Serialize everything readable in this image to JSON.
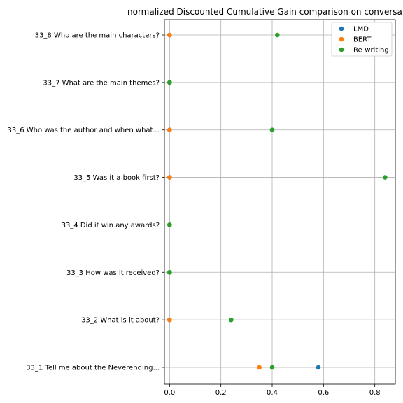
{
  "chart_data": {
    "type": "scatter",
    "title": "normalized Discounted Cumulative Gain comparison on conversa",
    "xlabel": "",
    "ylabel": "",
    "xlim": [
      -0.02,
      0.88
    ],
    "x_ticks": [
      "0.0",
      "0.2",
      "0.4",
      "0.6",
      "0.8"
    ],
    "x_tick_values": [
      0.0,
      0.2,
      0.4,
      0.6,
      0.8
    ],
    "grid": true,
    "legend_position": "top-right",
    "categories": [
      "33_1 Tell me about the Neverending...",
      "33_2 What is it about?",
      "33_3 How was it received?",
      "33_4 Did it win any awards?",
      "33_5 Was it a book first?",
      "33_6 Who was the author and when what...",
      "33_7 What are the main themes?",
      "33_8 Who are the main characters?"
    ],
    "series": [
      {
        "name": "LMD",
        "color": "#1f77b4",
        "values": [
          0.58,
          0.0,
          0.0,
          0.0,
          0.0,
          0.0,
          0.0,
          0.0
        ]
      },
      {
        "name": "BERT",
        "color": "#ff7f0e",
        "values": [
          0.35,
          0.0,
          0.0,
          0.0,
          0.0,
          0.0,
          0.0,
          0.0
        ]
      },
      {
        "name": "Re-writing",
        "color": "#2ca02c",
        "values": [
          0.4,
          0.24,
          0.0,
          0.0,
          0.84,
          0.4,
          0.0,
          0.42
        ]
      }
    ]
  }
}
